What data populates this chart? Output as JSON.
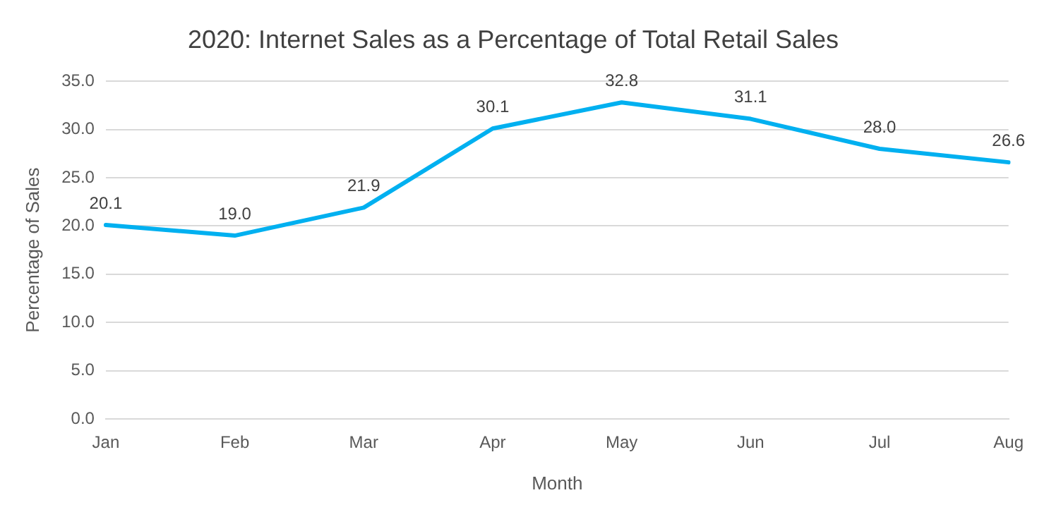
{
  "chart_data": {
    "type": "line",
    "title": "2020: Internet Sales as a Percentage of Total Retail Sales",
    "xlabel": "Month",
    "ylabel": "Percentage of Sales",
    "categories": [
      "Jan",
      "Feb",
      "Mar",
      "Apr",
      "May",
      "Jun",
      "Jul",
      "Aug"
    ],
    "series": [
      {
        "color": "#00b0f0",
        "values": [
          20.1,
          19.0,
          21.9,
          30.1,
          32.8,
          31.1,
          28.0,
          26.6
        ],
        "value_labels": [
          "20.1",
          "19.0",
          "21.9",
          "30.1",
          "32.8",
          "31.1",
          "28.0",
          "26.6"
        ]
      }
    ],
    "ylim": [
      0,
      35
    ],
    "yticks": [
      {
        "value": 0,
        "label": "0.0"
      },
      {
        "value": 5,
        "label": "5.0"
      },
      {
        "value": 10,
        "label": "10.0"
      },
      {
        "value": 15,
        "label": "15.0"
      },
      {
        "value": 20,
        "label": "20.0"
      },
      {
        "value": 25,
        "label": "25.0"
      },
      {
        "value": 30,
        "label": "30.0"
      },
      {
        "value": 35,
        "label": "35.0"
      }
    ],
    "grid": "y",
    "legend": false,
    "marker": "none",
    "line_style": "solid"
  }
}
